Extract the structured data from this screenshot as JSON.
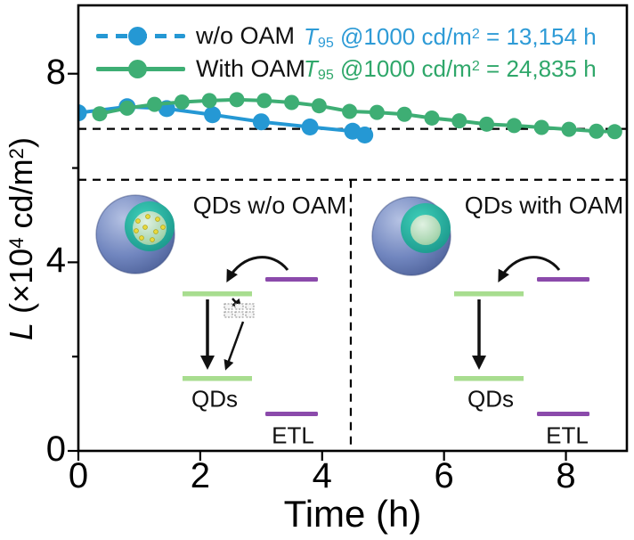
{
  "chart_data": {
    "type": "line",
    "title": "",
    "xlabel": "Time (h)",
    "ylabel": "L (×10⁴ cd/m²)",
    "xlim": [
      0,
      9.0
    ],
    "ylim": [
      0,
      9.45
    ],
    "x_ticks": [
      0,
      2,
      4,
      6,
      8
    ],
    "y_ticks": [
      0,
      4,
      8
    ],
    "y_minor_ticks": [
      2,
      6
    ],
    "grid": false,
    "legend_position": "top-left-inside",
    "reference_lines": {
      "t95_dashed_level": 6.83,
      "inset_top_dashed_level": 5.75,
      "inset_divider_x": 4.47
    },
    "series": [
      {
        "name": "w/o OAM",
        "color": "#2598d4",
        "line_style": "solid",
        "marker": "circle",
        "marker_radius": 9.5,
        "x": [
          0,
          0.8,
          1.45,
          2.2,
          3.0,
          3.8,
          4.5,
          4.7
        ],
        "y": [
          7.17,
          7.3,
          7.26,
          7.13,
          6.98,
          6.87,
          6.78,
          6.7
        ]
      },
      {
        "name": "With OAM",
        "color": "#3eae74",
        "line_style": "solid",
        "marker": "circle",
        "marker_radius": 8.5,
        "x": [
          0.35,
          0.8,
          1.25,
          1.7,
          2.15,
          2.6,
          3.05,
          3.5,
          3.95,
          4.45,
          4.9,
          5.35,
          5.8,
          6.25,
          6.7,
          7.15,
          7.6,
          8.05,
          8.5,
          8.8
        ],
        "y": [
          7.15,
          7.27,
          7.35,
          7.4,
          7.43,
          7.45,
          7.43,
          7.39,
          7.32,
          7.2,
          7.18,
          7.14,
          7.06,
          7.0,
          6.93,
          6.9,
          6.86,
          6.82,
          6.78,
          6.77
        ]
      }
    ]
  },
  "legend": {
    "items": [
      {
        "label": "w/o OAM",
        "color": "#2598d4",
        "dashed": true
      },
      {
        "label": "With OAM",
        "color": "#3eae74",
        "dashed": false
      }
    ]
  },
  "annotations": [
    {
      "t": "T",
      "sub": "95",
      "mid": " @1000 cd/m",
      "sup": "2",
      "tail": " = 13,154 h",
      "color": "#2e9bd6"
    },
    {
      "t": "T",
      "sub": "95",
      "mid": " @1000 cd/m",
      "sup": "2",
      "tail": " = 24,835 h",
      "color": "#2fa76a"
    }
  ],
  "axes": {
    "x_label": "Time (h)",
    "y_label_parts": {
      "pre": "L",
      "p1": " (×10",
      "sup1": "4",
      "p2": " cd/m",
      "sup2": "2",
      "p3": ")"
    }
  },
  "insets": {
    "left": {
      "title": "QDs w/o OAM",
      "qds": "QDs",
      "etl": "ETL"
    },
    "right": {
      "title": "QDs with OAM",
      "qds": "QDs",
      "etl": "ETL"
    }
  },
  "colors": {
    "series_blue": "#2598d4",
    "series_green": "#3eae74",
    "annotation_blue": "#2e9bd6",
    "annotation_green": "#2fa76a",
    "energy_level_green": "#a8dd8f",
    "glow_green": "#94dc6d",
    "etl_purple": "#8b4aab",
    "trap_gray": "#8e8e8e",
    "axis_black": "#000000",
    "sphere_outer_blue": "#7186bf",
    "sphere_shell_teal": "#1fae9e",
    "sphere_core_green": "#abd7b2",
    "trap_dot_yellow": "#e8d93e"
  }
}
